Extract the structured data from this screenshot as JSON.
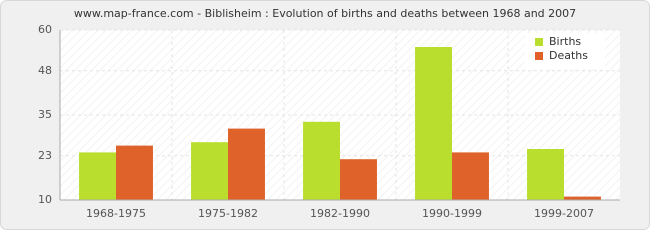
{
  "chart_data": {
    "type": "bar",
    "title": "www.map-france.com - Biblisheim : Evolution of births and deaths between 1968 and 2007",
    "categories": [
      "1968-1975",
      "1975-1982",
      "1982-1990",
      "1990-1999",
      "1999-2007"
    ],
    "series": [
      {
        "name": "Births",
        "color": "#bade2e",
        "values": [
          24,
          27,
          33,
          55,
          25
        ]
      },
      {
        "name": "Deaths",
        "color": "#e0622b",
        "values": [
          26,
          31,
          22,
          24,
          11
        ]
      }
    ],
    "ylim": [
      10,
      60
    ],
    "yticks": [
      10,
      23,
      35,
      48,
      60
    ],
    "grid": true,
    "legend": "top-right"
  }
}
